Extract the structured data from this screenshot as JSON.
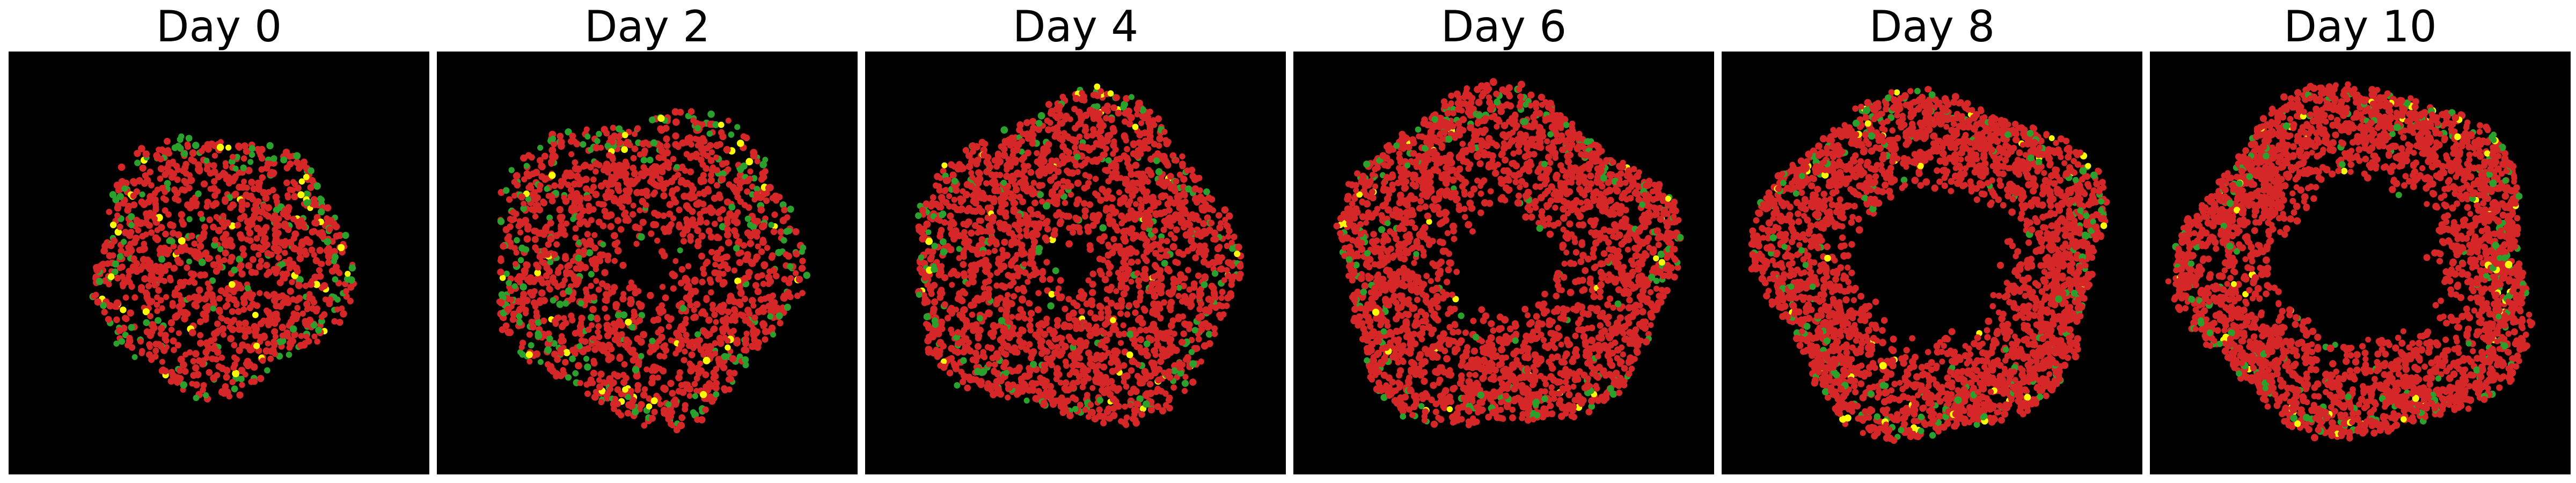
{
  "figure": {
    "panels": [
      {
        "title": "Day 0"
      },
      {
        "title": "Day 2"
      },
      {
        "title": "Day 4"
      },
      {
        "title": "Day 6"
      },
      {
        "title": "Day 8"
      },
      {
        "title": "Day 10"
      }
    ],
    "background_color": "#000000",
    "cell_colors": {
      "red": "#d62728",
      "green": "#2ca02c",
      "yellow": "#ffff00"
    }
  }
}
